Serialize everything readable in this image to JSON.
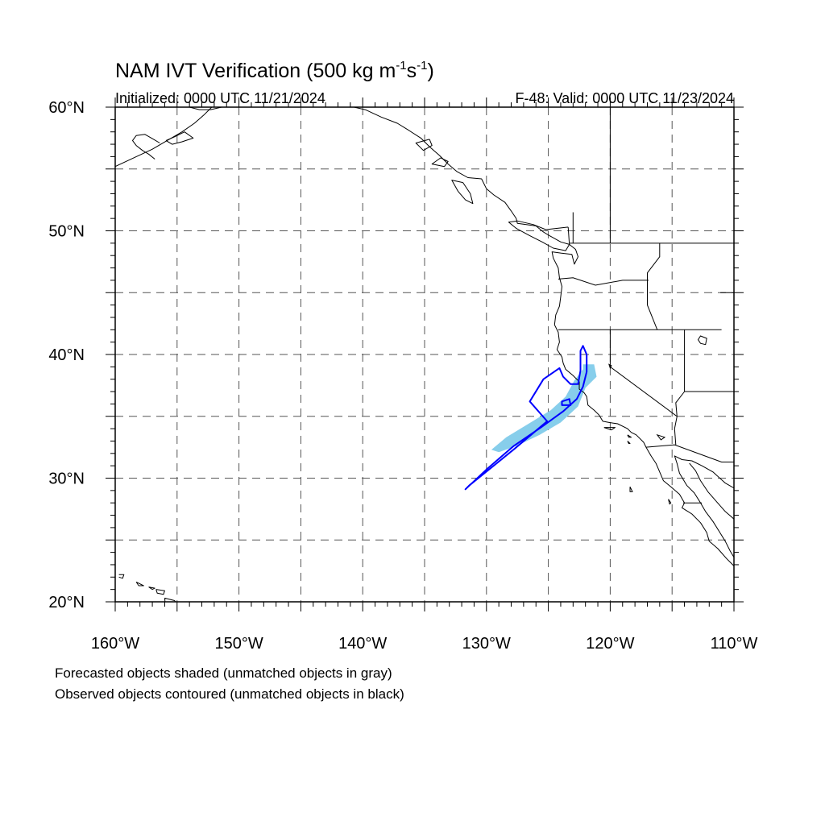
{
  "figure": {
    "title_main": "NAM IVT Verification (500 kg m",
    "title_sup1": "-1",
    "title_mid": "s",
    "title_sup2": "-1",
    "title_end": ")",
    "initialized": "Initialized: 0000 UTC 11/21/2024",
    "valid": "F-48: Valid: 0000 UTC 11/23/2024",
    "caption_line1": "Forecasted objects shaded (unmatched objects in gray)",
    "caption_line2": "Observed objects contoured (unmatched objects in black)"
  },
  "map": {
    "projection": "cylindrical equidistant",
    "lon_range": [
      -160,
      -110
    ],
    "lat_range": [
      20,
      60
    ],
    "lon_labels": [
      "160°W",
      "150°W",
      "140°W",
      "130°W",
      "120°W",
      "110°W"
    ],
    "lat_labels": [
      "60°N",
      "50°N",
      "40°N",
      "30°N",
      "20°N"
    ],
    "gridlines": "dashed, every 5°",
    "colors": {
      "forecast_shading": "#87ceeb",
      "observed_contour": "#0000ff",
      "coastline": "#000000",
      "grid": "#555555"
    },
    "forecast_object": {
      "status": "matched",
      "shape": [
        [
          -122.2,
          39.2
        ],
        [
          -121.3,
          39.2
        ],
        [
          -121.1,
          38.2
        ],
        [
          -122.0,
          37.3
        ],
        [
          -122.6,
          35.8
        ],
        [
          -124.0,
          34.5
        ],
        [
          -125.7,
          33.5
        ],
        [
          -127.6,
          32.6
        ],
        [
          -129.0,
          32.1
        ],
        [
          -129.6,
          32.3
        ],
        [
          -128.4,
          33.3
        ],
        [
          -126.6,
          34.4
        ],
        [
          -124.8,
          35.5
        ],
        [
          -123.6,
          36.6
        ],
        [
          -122.9,
          37.9
        ],
        [
          -122.2,
          38.8
        ]
      ]
    },
    "observed_objects": [
      {
        "status": "matched",
        "shape": [
          [
            -122.2,
            40.7
          ],
          [
            -121.9,
            40.0
          ],
          [
            -121.9,
            38.6
          ],
          [
            -122.2,
            37.4
          ],
          [
            -122.7,
            36.4
          ],
          [
            -123.8,
            35.4
          ],
          [
            -125.6,
            34.1
          ],
          [
            -127.8,
            32.6
          ],
          [
            -130.0,
            30.7
          ],
          [
            -131.7,
            29.1
          ],
          [
            -131.4,
            29.4
          ],
          [
            -129.3,
            31.1
          ],
          [
            -127.7,
            32.4
          ],
          [
            -126.4,
            33.5
          ],
          [
            -125.1,
            34.6
          ],
          [
            -126.5,
            36.2
          ],
          [
            -125.4,
            38.0
          ],
          [
            -124.1,
            38.9
          ],
          [
            -123.8,
            38.2
          ],
          [
            -123.2,
            37.6
          ],
          [
            -122.6,
            37.6
          ],
          [
            -122.4,
            38.7
          ],
          [
            -122.4,
            40.3
          ]
        ]
      },
      {
        "status": "matched",
        "shape": [
          [
            -123.9,
            36.2
          ],
          [
            -123.3,
            36.4
          ],
          [
            -123.2,
            35.9
          ],
          [
            -123.9,
            35.9
          ]
        ]
      }
    ]
  }
}
